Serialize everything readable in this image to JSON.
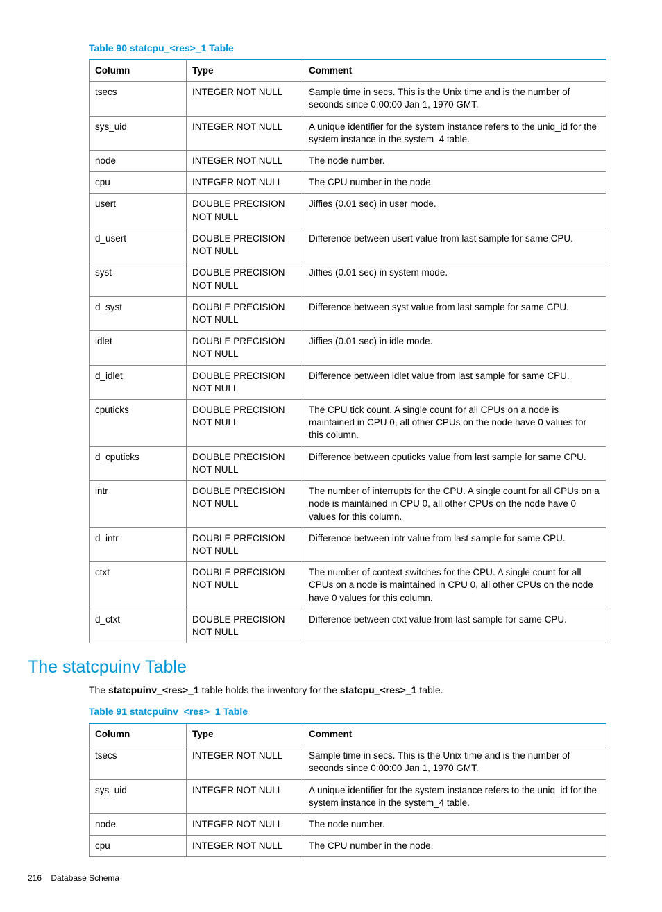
{
  "colors": {
    "accent": "#0096d6",
    "border": "#888888",
    "text": "#000000",
    "background": "#ffffff"
  },
  "table90": {
    "caption": "Table 90 statcpu_<res>_1 Table",
    "headers": {
      "col": "Column",
      "type": "Type",
      "comment": "Comment"
    },
    "col_widths": {
      "column": 140,
      "type": 168
    },
    "rows": [
      {
        "col": "tsecs",
        "type": "INTEGER NOT NULL",
        "comment": "Sample time in secs. This is the Unix time and is the number of seconds since 0:00:00 Jan 1, 1970 GMT."
      },
      {
        "col": "sys_uid",
        "type": "INTEGER NOT NULL",
        "comment": "A unique identifier for the system instance refers to the uniq_id for the system instance in the system_4 table."
      },
      {
        "col": "node",
        "type": "INTEGER NOT NULL",
        "comment": "The node number."
      },
      {
        "col": "cpu",
        "type": "INTEGER NOT NULL",
        "comment": "The CPU number in the node."
      },
      {
        "col": "usert",
        "type": "DOUBLE PRECISION NOT NULL",
        "comment": "Jiffies (0.01 sec) in user mode."
      },
      {
        "col": "d_usert",
        "type": "DOUBLE PRECISION NOT NULL",
        "comment": "Difference between usert value from last sample for same CPU."
      },
      {
        "col": "syst",
        "type": "DOUBLE PRECISION NOT NULL",
        "comment": "Jiffies (0.01 sec) in system mode."
      },
      {
        "col": "d_syst",
        "type": "DOUBLE PRECISION NOT NULL",
        "comment": "Difference between syst value from last sample for same CPU."
      },
      {
        "col": "idlet",
        "type": "DOUBLE PRECISION NOT NULL",
        "comment": "Jiffies (0.01 sec) in idle mode."
      },
      {
        "col": "d_idlet",
        "type": "DOUBLE PRECISION NOT NULL",
        "comment": "Difference between idlet value from last sample for same CPU."
      },
      {
        "col": "cputicks",
        "type": "DOUBLE PRECISION NOT NULL",
        "comment": "The CPU tick count. A single count for all CPUs on a node is maintained in CPU 0, all other CPUs on the node have 0 values for this column."
      },
      {
        "col": "d_cputicks",
        "type": "DOUBLE PRECISION NOT NULL",
        "comment": "Difference between cputicks value from last sample for same CPU."
      },
      {
        "col": "intr",
        "type": "DOUBLE PRECISION NOT NULL",
        "comment": "The number of interrupts for the CPU. A single count for all CPUs on a node is maintained in CPU 0, all other CPUs on the node have 0 values for this column."
      },
      {
        "col": "d_intr",
        "type": "DOUBLE PRECISION NOT NULL",
        "comment": "Difference between intr value from last sample for same CPU."
      },
      {
        "col": "ctxt",
        "type": "DOUBLE PRECISION NOT NULL",
        "comment": "The number of context switches for the CPU. A single count for all CPUs on a node is maintained in CPU 0, all other CPUs on the node have 0 values for this column."
      },
      {
        "col": "d_ctxt",
        "type": "DOUBLE PRECISION NOT NULL",
        "comment": "Difference between ctxt value from last sample for same CPU."
      }
    ]
  },
  "section": {
    "heading": "The statcpuinv Table",
    "para_pre": "The ",
    "para_b1": "statcpuinv_<res>_1",
    "para_mid": " table holds the inventory for the ",
    "para_b2": "statcpu_<res>_1",
    "para_post": " table."
  },
  "table91": {
    "caption": "Table 91 statcpuinv_<res>_1 Table",
    "headers": {
      "col": "Column",
      "type": "Type",
      "comment": "Comment"
    },
    "rows": [
      {
        "col": "tsecs",
        "type": "INTEGER NOT NULL",
        "comment": "Sample time in secs. This is the Unix time and is the number of seconds since 0:00:00 Jan 1, 1970 GMT."
      },
      {
        "col": "sys_uid",
        "type": "INTEGER NOT NULL",
        "comment": "A unique identifier for the system instance refers to the uniq_id for the system instance in the system_4 table."
      },
      {
        "col": "node",
        "type": "INTEGER NOT NULL",
        "comment": "The node number."
      },
      {
        "col": "cpu",
        "type": "INTEGER NOT NULL",
        "comment": "The CPU number in the node."
      }
    ]
  },
  "footer": {
    "page": "216",
    "section": "Database Schema"
  }
}
